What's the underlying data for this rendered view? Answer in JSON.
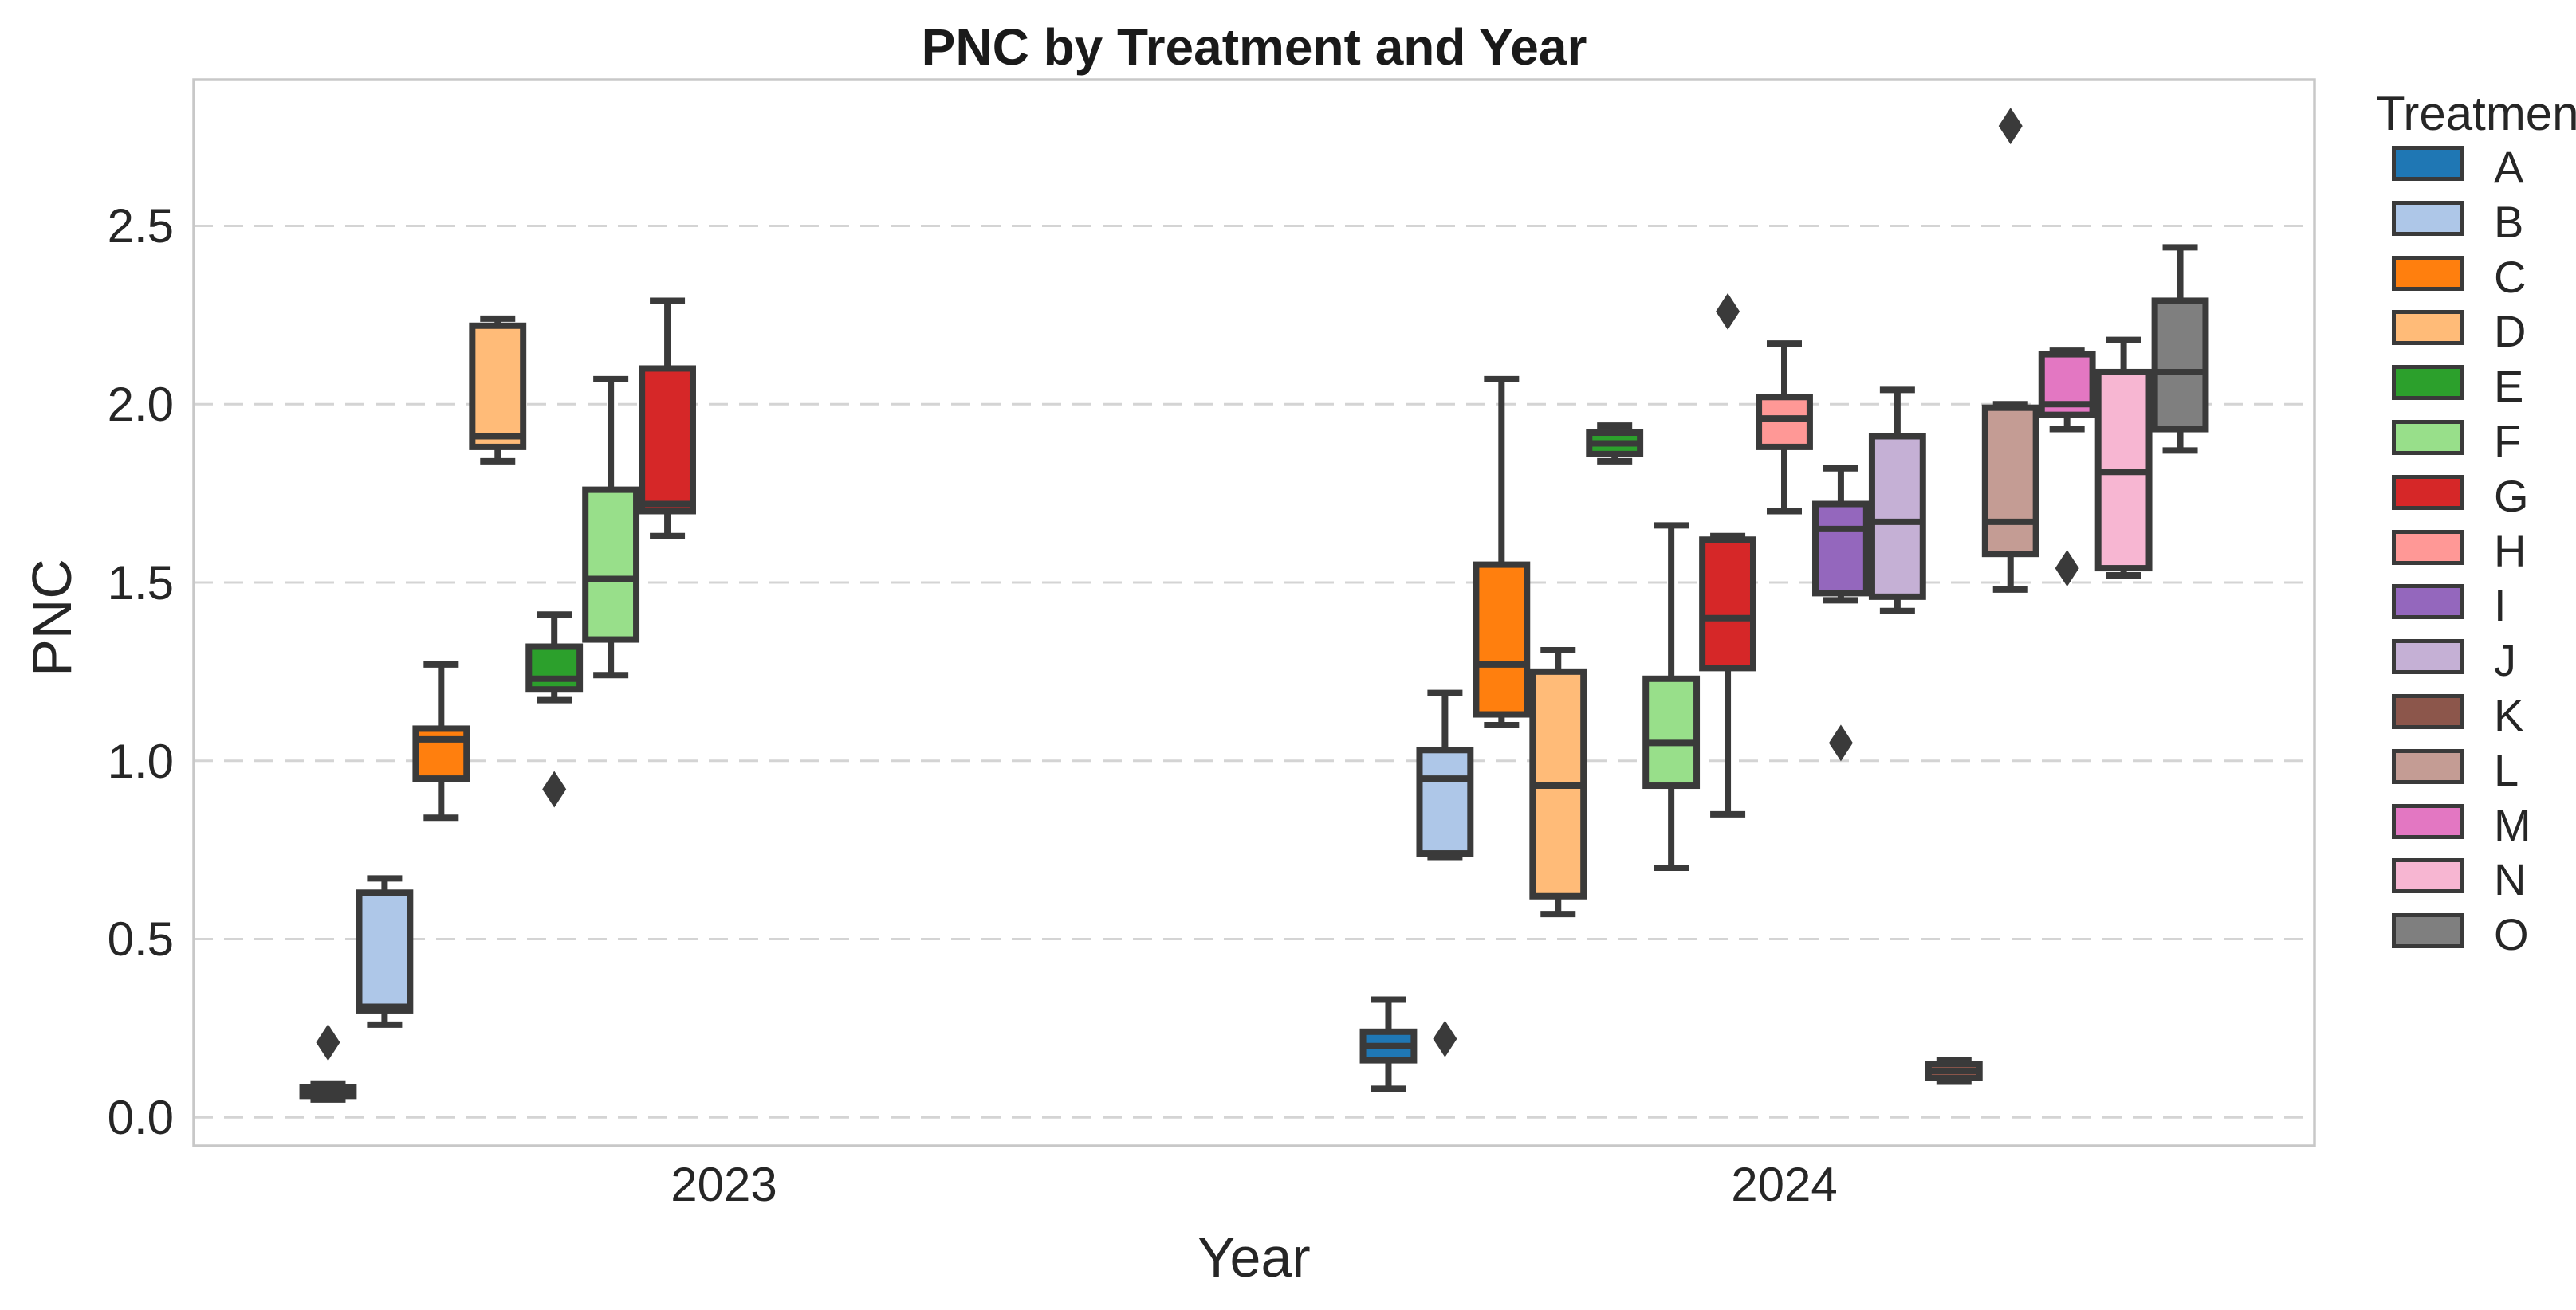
{
  "chart_data": {
    "type": "boxplot",
    "title": "PNC by Treatment and Year",
    "xlabel": "Year",
    "ylabel": "PNC",
    "categories": [
      "2023",
      "2024"
    ],
    "yticks": [
      "0.0",
      "0.5",
      "1.0",
      "1.5",
      "2.0",
      "2.5"
    ],
    "ylim": [
      -0.08,
      2.91
    ],
    "grid": "horizontal dashed",
    "legend": {
      "title": "Treatment",
      "position": "right"
    },
    "style": {
      "edge_color": "#3a3a3a",
      "grid_color": "#d4d4d4",
      "spine_color": "#c8c8c8",
      "background": "#ffffff"
    },
    "treatments": [
      {
        "label": "A",
        "color": "#1f77b4"
      },
      {
        "label": "B",
        "color": "#aec7e8"
      },
      {
        "label": "C",
        "color": "#ff7f0e"
      },
      {
        "label": "D",
        "color": "#ffbb78"
      },
      {
        "label": "E",
        "color": "#2ca02c"
      },
      {
        "label": "F",
        "color": "#98df8a"
      },
      {
        "label": "G",
        "color": "#d62728"
      },
      {
        "label": "H",
        "color": "#ff9896"
      },
      {
        "label": "I",
        "color": "#9467bd"
      },
      {
        "label": "J",
        "color": "#c5b0d5"
      },
      {
        "label": "K",
        "color": "#8c564b"
      },
      {
        "label": "L",
        "color": "#c49c94"
      },
      {
        "label": "M",
        "color": "#e377c2"
      },
      {
        "label": "N",
        "color": "#f7b6d2"
      },
      {
        "label": "O",
        "color": "#7f7f7f"
      }
    ],
    "boxes": [
      {
        "year": "2023",
        "treatment": "A",
        "whislo": 0.05,
        "q1": 0.06,
        "med": 0.072,
        "q3": 0.085,
        "whishi": 0.095,
        "outliers": [
          0.21
        ]
      },
      {
        "year": "2023",
        "treatment": "B",
        "whislo": 0.26,
        "q1": 0.3,
        "med": 0.31,
        "q3": 0.63,
        "whishi": 0.67,
        "outliers": []
      },
      {
        "year": "2023",
        "treatment": "C",
        "whislo": 0.84,
        "q1": 0.95,
        "med": 1.06,
        "q3": 1.09,
        "whishi": 1.27,
        "outliers": []
      },
      {
        "year": "2023",
        "treatment": "D",
        "whislo": 1.84,
        "q1": 1.88,
        "med": 1.91,
        "q3": 2.22,
        "whishi": 2.24,
        "outliers": []
      },
      {
        "year": "2023",
        "treatment": "E",
        "whislo": 1.17,
        "q1": 1.2,
        "med": 1.23,
        "q3": 1.32,
        "whishi": 1.41,
        "outliers": [
          0.92
        ]
      },
      {
        "year": "2023",
        "treatment": "F",
        "whislo": 1.24,
        "q1": 1.34,
        "med": 1.51,
        "q3": 1.76,
        "whishi": 2.07,
        "outliers": []
      },
      {
        "year": "2023",
        "treatment": "G",
        "whislo": 1.63,
        "q1": 1.7,
        "med": 1.72,
        "q3": 2.1,
        "whishi": 2.29,
        "outliers": []
      },
      {
        "year": "2024",
        "treatment": "A",
        "whislo": 0.08,
        "q1": 0.16,
        "med": 0.2,
        "q3": 0.24,
        "whishi": 0.33,
        "outliers": []
      },
      {
        "year": "2024",
        "treatment": "B",
        "whislo": 0.73,
        "q1": 0.74,
        "med": 0.95,
        "q3": 1.03,
        "whishi": 1.19,
        "outliers": [
          0.22
        ]
      },
      {
        "year": "2024",
        "treatment": "C",
        "whislo": 1.1,
        "q1": 1.13,
        "med": 1.27,
        "q3": 1.55,
        "whishi": 2.07,
        "outliers": []
      },
      {
        "year": "2024",
        "treatment": "D",
        "whislo": 0.57,
        "q1": 0.62,
        "med": 0.93,
        "q3": 1.25,
        "whishi": 1.31,
        "outliers": []
      },
      {
        "year": "2024",
        "treatment": "E",
        "whislo": 1.84,
        "q1": 1.86,
        "med": 1.89,
        "q3": 1.92,
        "whishi": 1.94,
        "outliers": []
      },
      {
        "year": "2024",
        "treatment": "F",
        "whislo": 0.7,
        "q1": 0.93,
        "med": 1.05,
        "q3": 1.23,
        "whishi": 1.66,
        "outliers": []
      },
      {
        "year": "2024",
        "treatment": "G",
        "whislo": 0.85,
        "q1": 1.26,
        "med": 1.4,
        "q3": 1.62,
        "whishi": 1.63,
        "outliers": [
          2.26
        ]
      },
      {
        "year": "2024",
        "treatment": "H",
        "whislo": 1.7,
        "q1": 1.88,
        "med": 1.96,
        "q3": 2.02,
        "whishi": 2.17,
        "outliers": []
      },
      {
        "year": "2024",
        "treatment": "I",
        "whislo": 1.45,
        "q1": 1.47,
        "med": 1.65,
        "q3": 1.72,
        "whishi": 1.82,
        "outliers": [
          1.05
        ]
      },
      {
        "year": "2024",
        "treatment": "J",
        "whislo": 1.42,
        "q1": 1.46,
        "med": 1.67,
        "q3": 1.91,
        "whishi": 2.04,
        "outliers": []
      },
      {
        "year": "2024",
        "treatment": "K",
        "whislo": 0.1,
        "q1": 0.11,
        "med": 0.13,
        "q3": 0.15,
        "whishi": 0.16,
        "outliers": []
      },
      {
        "year": "2024",
        "treatment": "L",
        "whislo": 1.48,
        "q1": 1.58,
        "med": 1.67,
        "q3": 1.99,
        "whishi": 2.0,
        "outliers": [
          2.78
        ]
      },
      {
        "year": "2024",
        "treatment": "M",
        "whislo": 1.93,
        "q1": 1.97,
        "med": 2.0,
        "q3": 2.14,
        "whishi": 2.15,
        "outliers": [
          1.54
        ]
      },
      {
        "year": "2024",
        "treatment": "N",
        "whislo": 1.52,
        "q1": 1.54,
        "med": 1.81,
        "q3": 2.09,
        "whishi": 2.18,
        "outliers": []
      },
      {
        "year": "2024",
        "treatment": "O",
        "whislo": 1.87,
        "q1": 1.93,
        "med": 2.09,
        "q3": 2.29,
        "whishi": 2.44,
        "outliers": []
      }
    ]
  }
}
